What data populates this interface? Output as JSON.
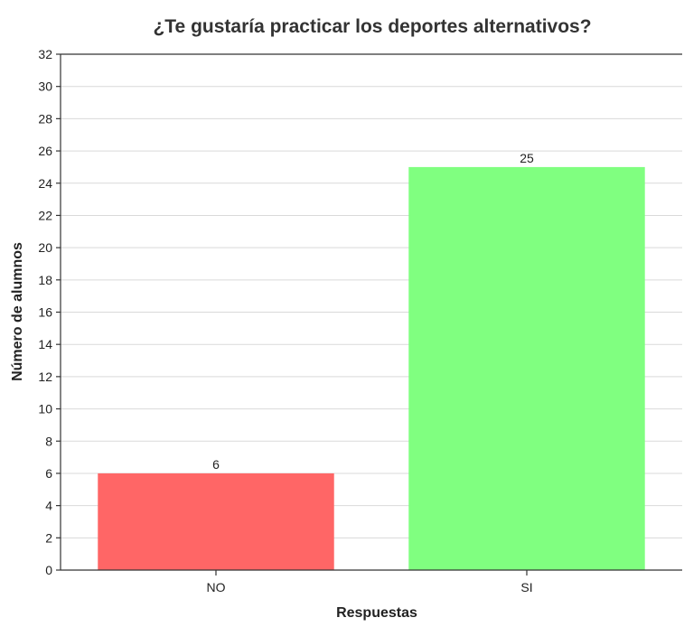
{
  "chart_data": {
    "type": "bar",
    "title": "¿Te gustaría practicar los deportes alternativos?",
    "xlabel": "Respuestas",
    "ylabel": "Número de alumnos",
    "categories": [
      "NO",
      "SI"
    ],
    "values": [
      6,
      25
    ],
    "data_labels": [
      "6",
      "25"
    ],
    "colors": [
      "#ff6666",
      "#80ff80"
    ],
    "ylim": [
      0,
      32
    ],
    "yticks": [
      0,
      2,
      4,
      6,
      8,
      10,
      12,
      14,
      16,
      18,
      20,
      22,
      24,
      26,
      28,
      30,
      32
    ],
    "grid": true,
    "legend": "none"
  }
}
